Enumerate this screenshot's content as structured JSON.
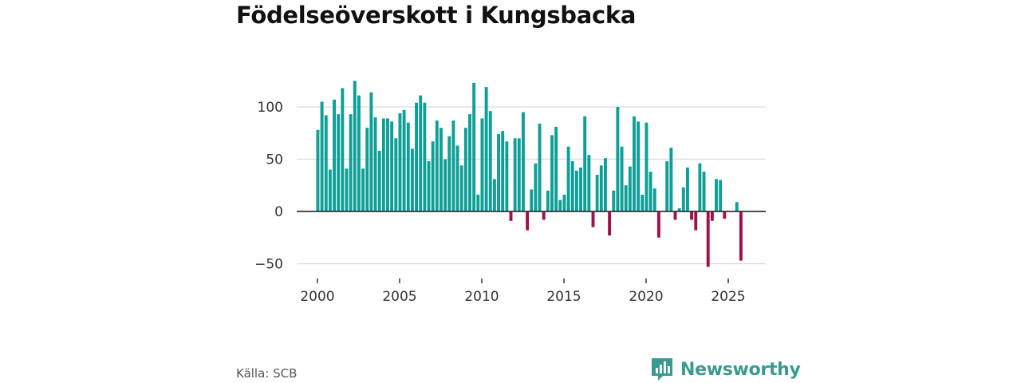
{
  "title": "Födelseöverskott i Kungsbacka",
  "source": "Källa: SCB",
  "brand": {
    "name": "Newsworthy"
  },
  "colors": {
    "positive": "#0e9f96",
    "negative": "#a0114a",
    "grid": "#d9d9d9",
    "zero_line": "#333333",
    "brand": "#3a9a8e"
  },
  "chart_data": {
    "type": "bar",
    "title": "Födelseöverskott i Kungsbacka",
    "xlabel": "",
    "ylabel": "",
    "ylim": [
      -55,
      130
    ],
    "xlim": [
      1999.35,
      2027.35
    ],
    "yticks": [
      -50,
      0,
      50,
      100
    ],
    "xticks": [
      2000,
      2005,
      2010,
      2015,
      2020,
      2025
    ],
    "x_step": 0.25,
    "x_start": 2000.0,
    "values": [
      78,
      105,
      92,
      40,
      107,
      93,
      118,
      41,
      93,
      125,
      111,
      41,
      80,
      114,
      90,
      58,
      89,
      89,
      86,
      70,
      94,
      97,
      85,
      60,
      104,
      111,
      104,
      48,
      67,
      87,
      80,
      50,
      72,
      87,
      63,
      44,
      80,
      93,
      123,
      16,
      89,
      119,
      96,
      31,
      74,
      77,
      67,
      -9,
      70,
      70,
      95,
      -18,
      21,
      46,
      84,
      -8,
      20,
      73,
      81,
      11,
      16,
      62,
      48,
      39,
      42,
      91,
      54,
      -15,
      35,
      44,
      51,
      -23,
      20,
      100,
      62,
      25,
      43,
      91,
      86,
      16,
      85,
      38,
      22,
      -25,
      0,
      48,
      61,
      -8,
      3,
      23,
      42,
      -8,
      -18,
      46,
      38,
      -53,
      -9,
      31,
      30,
      -7,
      0,
      0,
      9,
      -47
    ]
  }
}
